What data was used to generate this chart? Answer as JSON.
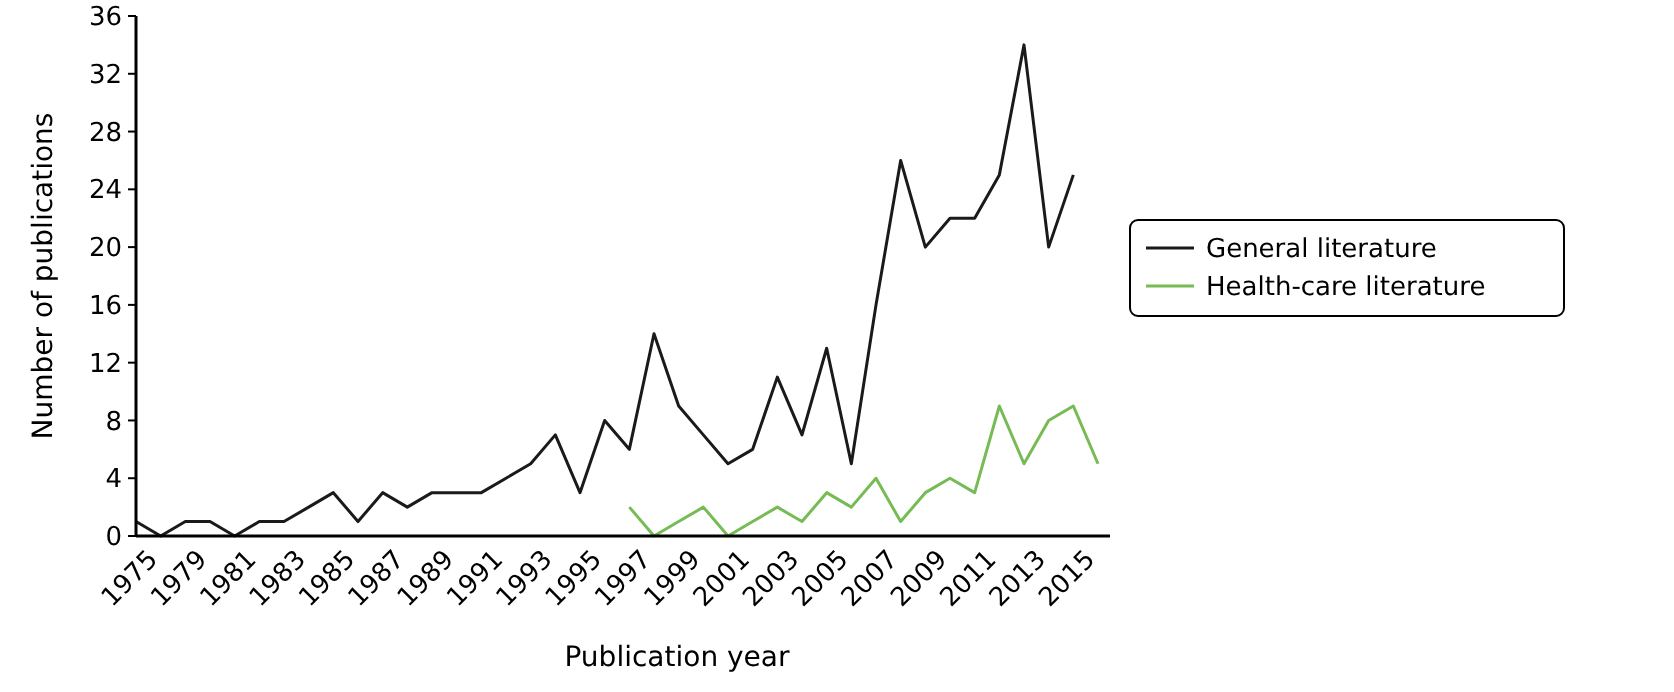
{
  "chart_data": {
    "type": "line",
    "xlabel": "Publication year",
    "ylabel": "Number of publications",
    "categories": [
      "1975",
      null,
      "1979",
      null,
      "1981",
      null,
      "1983",
      null,
      "1985",
      null,
      "1987",
      null,
      "1989",
      null,
      "1991",
      null,
      "1993",
      null,
      "1995",
      null,
      "1997",
      null,
      "1999",
      null,
      "2001",
      null,
      "2003",
      null,
      "2005",
      null,
      "2007",
      null,
      "2009",
      null,
      "2011",
      null,
      "2013",
      null,
      "2015",
      null
    ],
    "series": [
      {
        "name": "General literature",
        "color": "#1a1a1a",
        "values": [
          1,
          0,
          1,
          1,
          0,
          1,
          1,
          2,
          3,
          1,
          3,
          2,
          3,
          3,
          3,
          4,
          5,
          7,
          3,
          8,
          6,
          14,
          9,
          7,
          5,
          6,
          11,
          7,
          13,
          5,
          16,
          26,
          20,
          22,
          22,
          25,
          34,
          20,
          25,
          null
        ]
      },
      {
        "name": "Health-care literature",
        "color": "#77bb55",
        "values": [
          null,
          null,
          null,
          null,
          null,
          null,
          null,
          null,
          null,
          null,
          null,
          null,
          null,
          null,
          null,
          null,
          null,
          null,
          null,
          null,
          2,
          0,
          1,
          2,
          0,
          1,
          2,
          1,
          3,
          2,
          4,
          1,
          3,
          4,
          3,
          9,
          5,
          8,
          9,
          5
        ]
      }
    ],
    "ylim": [
      0,
      36
    ],
    "yticks": [
      0,
      4,
      8,
      12,
      16,
      20,
      24,
      28,
      32,
      36
    ],
    "grid": false,
    "legend": "right",
    "marker": "none",
    "line_style": "solid"
  }
}
